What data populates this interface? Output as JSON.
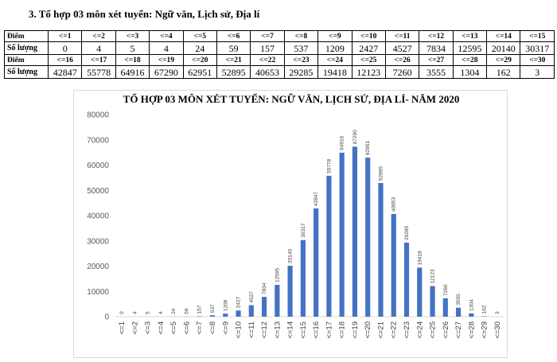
{
  "heading": "3. Tổ hợp 03 môn xét tuyển: Ngữ văn, Lịch sử, Địa lí",
  "table": {
    "label_score": "Điểm",
    "label_count": "Số lượng",
    "rows": [
      {
        "scores": [
          "<=1",
          "<=2",
          "<=3",
          "<=4",
          "<=5",
          "<=6",
          "<=7",
          "<=8",
          "<=9",
          "<=10",
          "<=11",
          "<=12",
          "<=13",
          "<=14",
          "<=15"
        ],
        "counts": [
          "0",
          "4",
          "5",
          "4",
          "24",
          "59",
          "157",
          "537",
          "1209",
          "2427",
          "4527",
          "7834",
          "12595",
          "20140",
          "30317"
        ]
      },
      {
        "scores": [
          "<=16",
          "<=17",
          "<=18",
          "<=19",
          "<=20",
          "<=21",
          "<=22",
          "<=23",
          "<=24",
          "<=25",
          "<=26",
          "<=27",
          "<=28",
          "<=29",
          "<=30"
        ],
        "counts": [
          "42847",
          "55778",
          "64916",
          "67290",
          "62951",
          "52895",
          "40653",
          "29285",
          "19418",
          "12123",
          "7260",
          "3555",
          "1304",
          "162",
          "3"
        ]
      }
    ]
  },
  "chart_data": {
    "type": "bar",
    "title": "TỔ HỢP 03 MÔN XÉT TUYỂN: NGỮ VĂN, LỊCH SỬ, ĐỊA LÍ- NĂM 2020",
    "categories": [
      "<=1",
      "<=2",
      "<=3",
      "<=4",
      "<=5",
      "<=6",
      "<=7",
      "<=8",
      "<=9",
      "<=10",
      "<=11",
      "<=12",
      "<=13",
      "<=14",
      "<=15",
      "<=16",
      "<=17",
      "<=18",
      "<=19",
      "<=20",
      "<=21",
      "<=22",
      "<=23",
      "<=24",
      "<=25",
      "<=26",
      "<=27",
      "<=28",
      "<=29",
      "<=30"
    ],
    "values": [
      0,
      4,
      5,
      4,
      24,
      59,
      157,
      537,
      1209,
      2427,
      4527,
      7834,
      12595,
      20140,
      30317,
      42847,
      55778,
      64916,
      67290,
      62951,
      52895,
      40653,
      29285,
      19418,
      12123,
      7260,
      3555,
      1304,
      162,
      3
    ],
    "yticks": [
      0,
      10000,
      20000,
      30000,
      40000,
      50000,
      60000,
      70000,
      80000
    ],
    "ylim": [
      0,
      80000
    ],
    "xlabel": "",
    "ylabel": "",
    "grid": false,
    "legend": "none",
    "bar_color": "#4472c4"
  }
}
